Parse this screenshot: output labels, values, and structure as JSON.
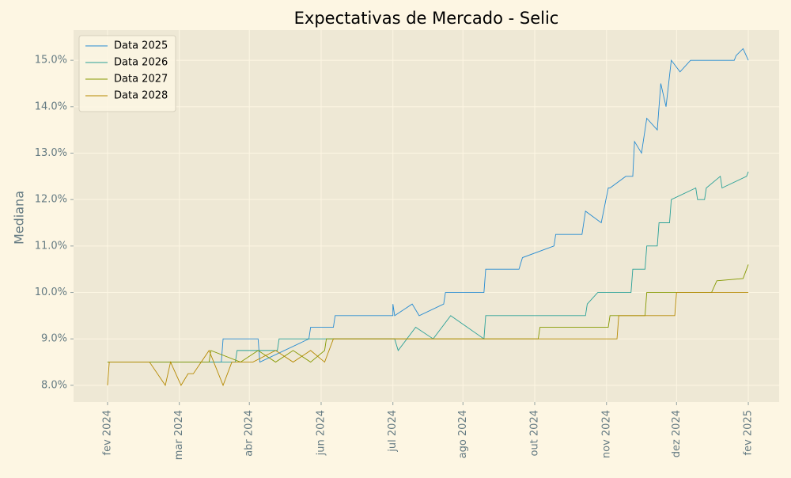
{
  "chart_data": {
    "type": "line",
    "title": "Expectativas de Mercado - Selic",
    "ylabel": "Mediana",
    "xlim": [
      19734.6,
      20137.6
    ],
    "ylim": [
      7.64,
      15.65
    ],
    "xticks": [
      {
        "value": 19754,
        "label": "fev 2024"
      },
      {
        "value": 19795,
        "label": "mar 2024"
      },
      {
        "value": 19835,
        "label": "abr 2024"
      },
      {
        "value": 19876,
        "label": "jun 2024"
      },
      {
        "value": 19917,
        "label": "jul 2024"
      },
      {
        "value": 19957,
        "label": "ago 2024"
      },
      {
        "value": 19998,
        "label": "out 2024"
      },
      {
        "value": 20039,
        "label": "nov 2024"
      },
      {
        "value": 20079,
        "label": "dez 2024"
      },
      {
        "value": 20120,
        "label": "fev 2025"
      }
    ],
    "yticks": [
      {
        "value": 8,
        "label": "8.0%"
      },
      {
        "value": 9,
        "label": "9.0%"
      },
      {
        "value": 10,
        "label": "10.0%"
      },
      {
        "value": 11,
        "label": "11.0%"
      },
      {
        "value": 12,
        "label": "12.0%"
      },
      {
        "value": 13,
        "label": "13.0%"
      },
      {
        "value": 14,
        "label": "14.0%"
      },
      {
        "value": 15,
        "label": "15.0%"
      }
    ],
    "grid": true,
    "legend": "upper left",
    "series": [
      {
        "name": "Data 2025",
        "color": "#268bd2",
        "x": [
          19754,
          19819,
          19820,
          19827,
          19840,
          19841,
          19869,
          19870,
          19883,
          19884,
          19917,
          19917,
          19918,
          19928,
          19932,
          19946,
          19947,
          19969,
          19970,
          19989,
          19991,
          20009,
          20010,
          20025,
          20027,
          20036,
          20040,
          20041,
          20050,
          20054,
          20055,
          20059,
          20062,
          20068,
          20070,
          20073,
          20076,
          20081,
          20087,
          20112,
          20113,
          20117,
          20120
        ],
        "values": [
          8.5,
          8.5,
          9.0,
          9.0,
          9.0,
          8.5,
          9.0,
          9.25,
          9.25,
          9.5,
          9.5,
          9.75,
          9.5,
          9.75,
          9.5,
          9.75,
          10.0,
          10.0,
          10.5,
          10.5,
          10.75,
          11.0,
          11.25,
          11.25,
          11.75,
          11.5,
          12.25,
          12.25,
          12.5,
          12.5,
          13.25,
          13.0,
          13.75,
          13.5,
          14.5,
          14.0,
          15.0,
          14.75,
          15.0,
          15.0,
          15.1,
          15.25,
          15.0
        ]
      },
      {
        "name": "Data 2026",
        "color": "#2aa198",
        "x": [
          19754,
          19827,
          19828,
          19851,
          19852,
          19918,
          19920,
          19930,
          19940,
          19950,
          19969,
          19970,
          20027,
          20028,
          20034,
          20053,
          20054,
          20061,
          20062,
          20068,
          20069,
          20075,
          20076,
          20090,
          20091,
          20095,
          20096,
          20104,
          20105,
          20119,
          20120
        ],
        "values": [
          8.5,
          8.5,
          8.75,
          8.75,
          9.0,
          9.0,
          8.75,
          9.25,
          9.0,
          9.5,
          9.0,
          9.5,
          9.5,
          9.75,
          10.0,
          10.0,
          10.5,
          10.5,
          11.0,
          11.0,
          11.5,
          11.5,
          12.0,
          12.25,
          12.0,
          12.0,
          12.25,
          12.5,
          12.25,
          12.5,
          12.6
        ]
      },
      {
        "name": "Data 2027",
        "color": "#859900",
        "x": [
          19754,
          19812,
          19813,
          19830,
          19840,
          19850,
          19860,
          19870,
          19878,
          19879,
          20000,
          20001,
          20009,
          20040,
          20041,
          20061,
          20062,
          20099,
          20102,
          20117,
          20120
        ],
        "values": [
          8.5,
          8.5,
          8.75,
          8.5,
          8.75,
          8.5,
          8.75,
          8.5,
          8.75,
          9.0,
          9.0,
          9.25,
          9.25,
          9.25,
          9.5,
          9.5,
          10.0,
          10.0,
          10.25,
          10.3,
          10.6
        ]
      },
      {
        "name": "Data 2028",
        "color": "#b58900",
        "x": [
          19754,
          19755,
          19778,
          19787,
          19790,
          19796,
          19800,
          19803,
          19812,
          19820,
          19825,
          19837,
          19850,
          19860,
          19870,
          19878,
          19883,
          20045,
          20046,
          20078,
          20079,
          20120
        ],
        "values": [
          8.0,
          8.5,
          8.5,
          8.0,
          8.5,
          8.0,
          8.25,
          8.25,
          8.75,
          8.0,
          8.5,
          8.5,
          8.75,
          8.5,
          8.75,
          8.5,
          9.0,
          9.0,
          9.5,
          9.5,
          10.0,
          10.0
        ]
      }
    ]
  }
}
